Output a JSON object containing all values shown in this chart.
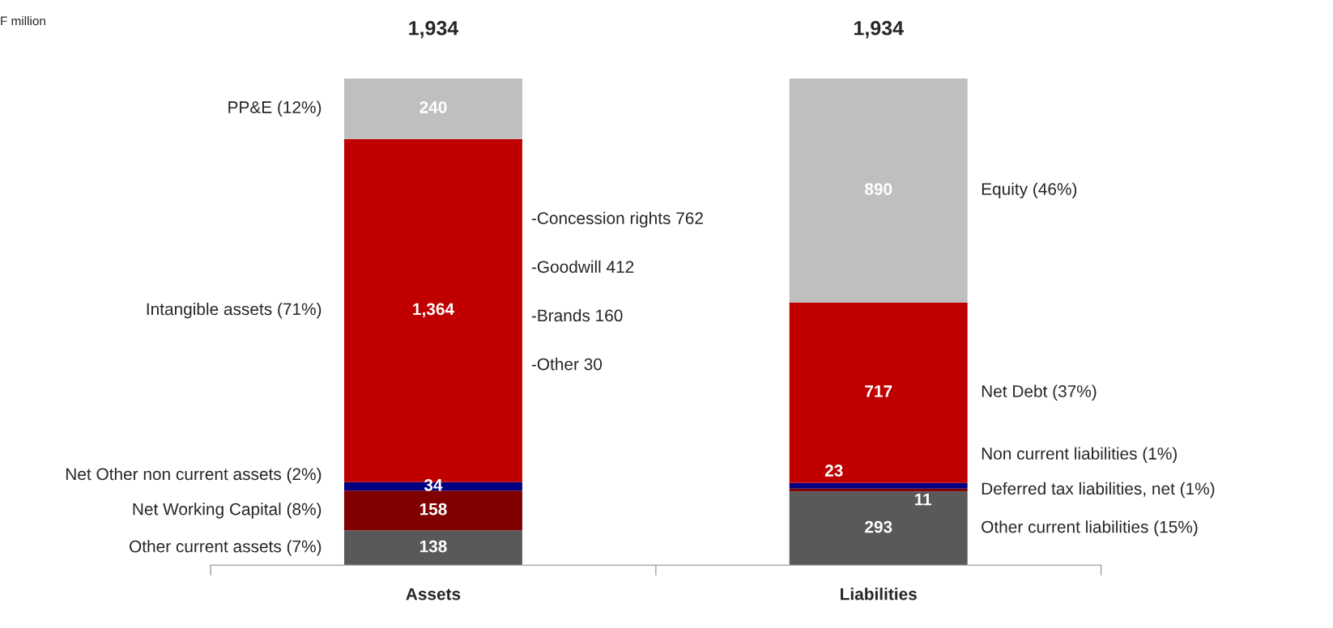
{
  "chart_data": {
    "type": "bar",
    "stacked": true,
    "categories": [
      "Assets",
      "Liabilities"
    ],
    "series": [
      {
        "color": "#595959",
        "values": [
          138,
          293
        ],
        "value_labels": [
          "138",
          "293"
        ]
      },
      {
        "color": "#800000",
        "values": [
          158,
          11
        ],
        "value_labels": [
          "158",
          "11"
        ]
      },
      {
        "color": "#000080",
        "values": [
          34,
          23
        ],
        "value_labels": [
          "34",
          "23"
        ]
      },
      {
        "color": "#c00000",
        "values": [
          1364,
          717
        ],
        "value_labels": [
          "1,364",
          "717"
        ]
      },
      {
        "color": "#bfbfbf",
        "values": [
          240,
          890
        ],
        "value_labels": [
          "240",
          "890"
        ]
      }
    ],
    "totals": [
      "1,934",
      "1,934"
    ],
    "legend": false,
    "annotations": [
      "F million",
      "-Concession rights 762",
      "-Goodwill 412",
      "-Brands 160",
      "-Other 30",
      "Other current assets (7%)",
      "Net Working Capital (8%)",
      "Net Other non current assets (2%)",
      "Intangible assets (71%)",
      "PP&E (12%)",
      "Other current liabilities (15%)",
      "Deferred tax liabilities, net (1%)",
      "Non current liabilities (1%)",
      "Net Debt (37%)",
      "Equity (46%)"
    ]
  }
}
